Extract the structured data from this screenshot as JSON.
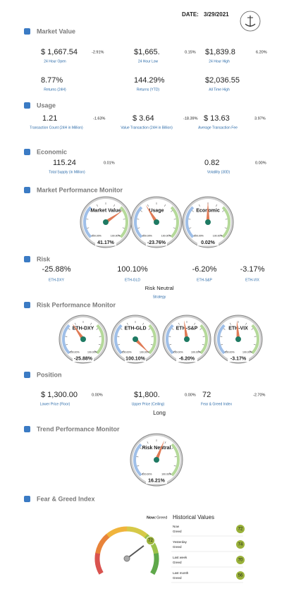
{
  "header": {
    "date_label": "DATE:",
    "date": "3/29/2021"
  },
  "market_value": {
    "title": "Market Value",
    "rows": [
      [
        {
          "value": "$ 1,667.54",
          "change": "-2.91%",
          "label": "24 Hour Open"
        },
        {
          "value": "$1,665.",
          "change": "0.15%",
          "label": "24 Hour Low"
        },
        {
          "value": "$1,839.8",
          "change": "6.20%",
          "label": "24 Hour High"
        }
      ],
      [
        {
          "value": "8.77%",
          "label": "Returns (24H)",
          "color": "#1e7b4a"
        },
        {
          "value": "144.29%",
          "label": "Returns (YTD)",
          "color": "#1e7b4a"
        },
        {
          "value": "$2,036.55",
          "label": "All Time High"
        }
      ]
    ]
  },
  "usage": {
    "title": "Usage",
    "items": [
      {
        "value": "1.21",
        "change": "-1.63%",
        "label": "Transaction Count (24H in Million)"
      },
      {
        "value": "$ 3.64",
        "change": "-18.39%",
        "label": "Value Transaction (24H in Billion)"
      },
      {
        "value": "$ 13.63",
        "change": "3.97%",
        "label": "Average Transaction Fee"
      }
    ]
  },
  "economic": {
    "title": "Economic",
    "items": [
      {
        "value": "115.24",
        "change": "0.01%",
        "label": "Total Supply (in Million)"
      },
      {
        "value": "0.82",
        "change": "0.00%",
        "label": "Volatility (30D)"
      }
    ]
  },
  "market_performance": {
    "title": "Market Performance Monitor",
    "scale": [
      {
        "value": -100,
        "label": "-100.00%"
      },
      {
        "value": 100,
        "label": "100.00%"
      }
    ],
    "gauges": [
      {
        "name": "Market Value",
        "value": {
          "value": 41.17,
          "label": "41.17%"
        }
      },
      {
        "name": "Usage",
        "value": {
          "value": -23.76,
          "label": "-23.76%"
        }
      },
      {
        "name": "Economic",
        "value": {
          "value": 0.02,
          "label": "0.02%"
        }
      }
    ]
  },
  "risk": {
    "title": "Risk",
    "items": [
      {
        "value": "-25.88%",
        "label": "ETH-DXY",
        "color": "#c0392b"
      },
      {
        "value": "100.10%",
        "label": "ETH-GLD",
        "color": "#1e7b4a"
      },
      {
        "value": "-6.20%",
        "label": "ETH-S&P",
        "color": "#c0392b"
      },
      {
        "value": "-3.17%",
        "label": "ETH-VIX",
        "color": "#c0392b"
      }
    ],
    "strategy": "Risk Neutral",
    "strategy_label": "Strategy"
  },
  "risk_performance": {
    "title": "Risk Performance Monitor",
    "scale": [
      {
        "value": -100,
        "label": "-100.00%"
      },
      {
        "value": 100,
        "label": "100.00%"
      }
    ],
    "gauges": [
      {
        "name": "ETH-DXY",
        "value": {
          "value": -25.88,
          "label": "-25.88%"
        }
      },
      {
        "name": "ETH-GLD",
        "value": {
          "value": 100.1,
          "label": "100.10%"
        }
      },
      {
        "name": "ETH-S&P",
        "value": {
          "value": -6.2,
          "label": "-6.20%"
        }
      },
      {
        "name": "ETH-VIX",
        "value": {
          "value": -3.17,
          "label": "-3.17%"
        }
      }
    ]
  },
  "position": {
    "title": "Position",
    "items": [
      {
        "value": "$ 1,300.00",
        "change": "0.00%",
        "label": "Lower Price (Floor)"
      },
      {
        "value": "$1,800.",
        "change": "0.00%",
        "label": "Upper Price (Ceiling)"
      },
      {
        "value": "72",
        "change": "-2.70%",
        "label": "Fear & Greed Index"
      }
    ],
    "direction": "Long"
  },
  "trend_performance": {
    "title": "Trend Performance Monitor",
    "scale": [
      {
        "value": -100,
        "label": "-100.00%"
      },
      {
        "value": 100,
        "label": "100.00%"
      }
    ],
    "gauges": [
      {
        "name": "Risk Neutral",
        "value": {
          "value": 16.21,
          "label": "16.21%"
        }
      }
    ]
  },
  "fear_greed": {
    "title": "Fear & Greed Index",
    "now_label": "Now:",
    "now": "Greed",
    "historical_title": "Historical Values",
    "gauge_range": [
      0,
      100
    ],
    "gauge_value": 72,
    "history": [
      {
        "period": "Now",
        "label": "Greed",
        "value": 72
      },
      {
        "period": "Yesterday",
        "label": "Greed",
        "value": 74
      },
      {
        "period": "Last week",
        "label": "Greed",
        "value": 70
      },
      {
        "period": "Last month",
        "label": "Greed",
        "value": 56
      }
    ]
  }
}
